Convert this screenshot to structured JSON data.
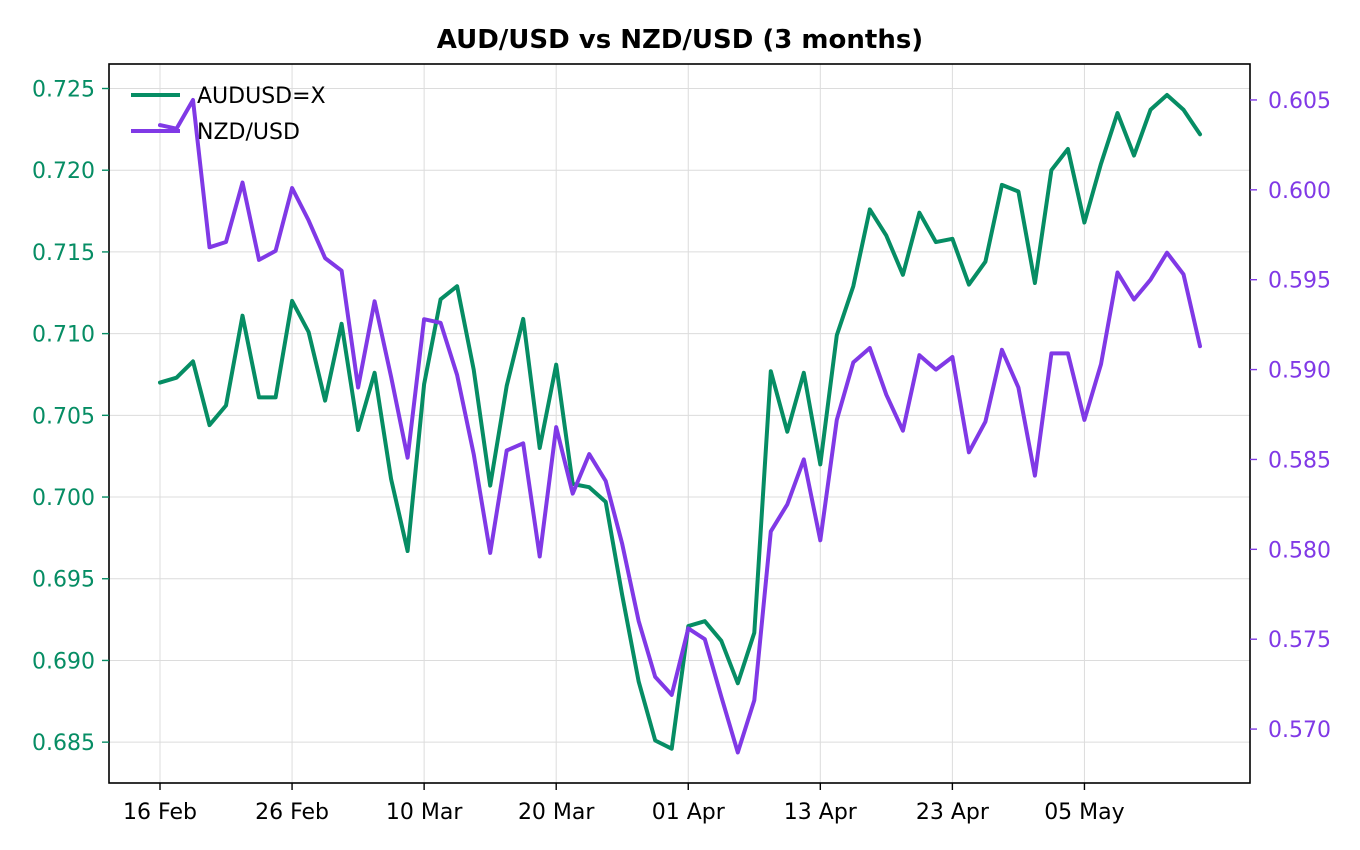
{
  "chart_data": {
    "type": "line",
    "title": "AUD/USD vs NZD/USD (3 months)",
    "xlabel": "",
    "ylabel_left": "",
    "ylabel_right": "",
    "x_tick_labels": [
      "16 Feb",
      "26 Feb",
      "10 Mar",
      "20 Mar",
      "01 Apr",
      "13 Apr",
      "23 Apr",
      "05 May"
    ],
    "left_ticks": [
      "0.685",
      "0.690",
      "0.695",
      "0.700",
      "0.705",
      "0.710",
      "0.715",
      "0.720",
      "0.725"
    ],
    "right_ticks": [
      "0.570",
      "0.575",
      "0.580",
      "0.585",
      "0.590",
      "0.595",
      "0.600",
      "0.605"
    ],
    "ylim_left": [
      0.6825,
      0.7265
    ],
    "ylim_right": [
      0.567,
      0.607
    ],
    "grid": true,
    "legend_position": "top-left",
    "colors": {
      "audusd": "#068d64",
      "nzdusd": "#8039e6"
    },
    "series": [
      {
        "name": "AUDUSD=X",
        "axis": "left",
        "values": [
          0.707,
          0.7073,
          0.7083,
          0.7044,
          0.7056,
          0.7111,
          0.7061,
          0.7061,
          0.712,
          0.7101,
          0.7059,
          0.7106,
          0.7041,
          0.7076,
          0.7011,
          0.6967,
          0.7069,
          0.7121,
          0.7129,
          0.7078,
          0.7007,
          0.7068,
          0.7109,
          0.703,
          0.7081,
          0.7008,
          0.7006,
          0.6997,
          0.694,
          0.6887,
          0.6851,
          0.6846,
          0.6921,
          0.6924,
          0.6912,
          0.6886,
          0.6917,
          0.7077,
          0.704,
          0.7076,
          0.702,
          0.7099,
          0.7129,
          0.7176,
          0.716,
          0.7136,
          0.7174,
          0.7156,
          0.7158,
          0.713,
          0.7144,
          0.7191,
          0.7187,
          0.7131,
          0.72,
          0.7213,
          0.7168,
          0.7204,
          0.7235,
          0.7209,
          0.7237,
          0.7246,
          0.7237,
          0.7222
        ]
      },
      {
        "name": "NZD/USD",
        "axis": "right",
        "values": [
          0.6036,
          0.6034,
          0.605,
          0.5968,
          0.5971,
          0.6004,
          0.5961,
          0.5966,
          0.6001,
          0.5983,
          0.5962,
          0.5955,
          0.589,
          0.5938,
          0.5896,
          0.5851,
          0.5928,
          0.5926,
          0.5897,
          0.5853,
          0.5798,
          0.5855,
          0.5859,
          0.5796,
          0.5868,
          0.5831,
          0.5853,
          0.5838,
          0.5803,
          0.576,
          0.5729,
          0.5719,
          0.5756,
          0.575,
          0.5718,
          0.5687,
          0.5716,
          0.581,
          0.5825,
          0.585,
          0.5805,
          0.5872,
          0.5904,
          0.5912,
          0.5886,
          0.5866,
          0.5908,
          0.59,
          0.5907,
          0.5854,
          0.5871,
          0.5911,
          0.589,
          0.5841,
          0.5909,
          0.5909,
          0.5872,
          0.5903,
          0.5954,
          0.5939,
          0.595,
          0.5965,
          0.5953,
          0.5913
        ]
      }
    ]
  }
}
